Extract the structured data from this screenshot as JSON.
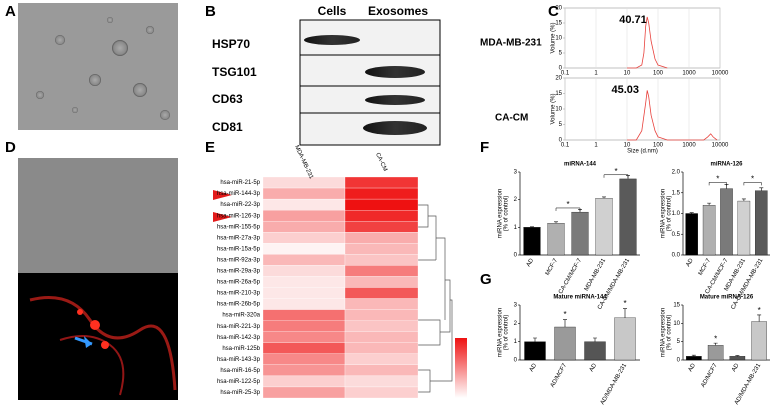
{
  "panels": [
    "A",
    "B",
    "C",
    "D",
    "E",
    "F",
    "G"
  ],
  "blot": {
    "columns": [
      "Cells",
      "Exosomes"
    ],
    "rows": [
      "HSP70",
      "TSG101",
      "CD63",
      "CD81"
    ]
  },
  "chart_data": [
    {
      "type": "line",
      "title": "MDA-MB-231",
      "annotation": "40.71",
      "color": "#e8413c",
      "log_x": true,
      "xlim": [
        0.1,
        10000
      ],
      "xticks": [
        0.1,
        1,
        10,
        100,
        1000,
        10000
      ],
      "ylim": [
        0,
        20
      ],
      "yticks": [
        0,
        5,
        10,
        15,
        20
      ],
      "ylabel": "Volume (%)",
      "x": [
        10,
        20,
        30,
        35,
        40,
        45,
        50,
        60,
        80,
        100,
        200
      ],
      "values": [
        0,
        0,
        1,
        5,
        14,
        17,
        15,
        9,
        3,
        1,
        0
      ]
    },
    {
      "type": "line",
      "title": "CA-CM",
      "annotation": "45.03",
      "xlabel": "Size (d.nm)",
      "color": "#e8413c",
      "log_x": true,
      "xlim": [
        0.1,
        10000
      ],
      "xticks": [
        0.1,
        1,
        10,
        100,
        1000,
        10000
      ],
      "ylim": [
        0,
        20
      ],
      "yticks": [
        0,
        5,
        10,
        15,
        20
      ],
      "ylabel": "Volume (%)",
      "x": [
        10,
        20,
        30,
        40,
        45,
        50,
        60,
        80,
        100,
        200,
        3000,
        4000,
        5000,
        6000,
        8000
      ],
      "values": [
        0,
        0,
        3,
        12,
        16,
        14,
        8,
        3,
        1,
        0,
        0,
        1,
        2,
        1,
        0
      ]
    },
    {
      "type": "bar",
      "title": "miRNA-144",
      "ylabel": [
        "miRNA expression",
        "(% of control)"
      ],
      "categories": [
        "AD",
        "MCF-7",
        "CA-CM/MCF-7",
        "MDA-MB-231",
        "CA-CM/MDA-MB-231"
      ],
      "values": [
        1.0,
        1.15,
        1.55,
        2.05,
        2.75
      ],
      "errors": [
        0.02,
        0.05,
        0.1,
        0.05,
        0.12
      ],
      "colors": [
        "#000000",
        "#b0b0b0",
        "#7a7a7a",
        "#d0d0d0",
        "#5a5a5a"
      ],
      "ylim": [
        0,
        3
      ],
      "yticks": [
        0,
        1,
        2,
        3
      ],
      "annotations": [
        "*",
        "*"
      ]
    },
    {
      "type": "bar",
      "title": "miRNA-126",
      "ylabel": [
        "miRNA expression",
        "(% of control)"
      ],
      "categories": [
        "AD",
        "MCF-7",
        "CA-CM/MCF-7",
        "MDA-MB-231",
        "CA-CM/MDA-MB-231"
      ],
      "values": [
        1.0,
        1.2,
        1.6,
        1.3,
        1.55
      ],
      "errors": [
        0.02,
        0.05,
        0.1,
        0.05,
        0.07
      ],
      "colors": [
        "#000000",
        "#b0b0b0",
        "#7a7a7a",
        "#d0d0d0",
        "#5a5a5a"
      ],
      "ylim": [
        0,
        2
      ],
      "yticks": [
        {
          "value": 0,
          "label": "0.0"
        },
        {
          "value": 0.5,
          "label": "0.5"
        },
        {
          "value": 1,
          "label": "1.0"
        },
        {
          "value": 1.5,
          "label": "1.5"
        },
        {
          "value": 2,
          "label": "2.0"
        }
      ],
      "annotations": [
        "*",
        "*"
      ]
    },
    {
      "type": "bar",
      "title": "Mature miRNA-144",
      "ylabel": [
        "miRNA expression",
        "(% of control)"
      ],
      "categories": [
        "AD",
        "AD/MCF7",
        "AD",
        "AD/MDA-MB-231"
      ],
      "values": [
        1.0,
        1.8,
        1.0,
        2.3
      ],
      "errors": [
        0.2,
        0.4,
        0.2,
        0.5
      ],
      "colors": [
        "#000000",
        "#9a9a9a",
        "#555555",
        "#c8c8c8"
      ],
      "ylim": [
        0,
        3
      ],
      "yticks": [
        0,
        1,
        2,
        3
      ],
      "annotations": [
        "*",
        "*"
      ]
    },
    {
      "type": "bar",
      "title": "Mature miRNA-126",
      "ylabel": [
        "miRNA expression",
        "(% of control)"
      ],
      "categories": [
        "AD",
        "AD/MCF7",
        "AD",
        "AD/MDA-MB-231"
      ],
      "values": [
        1.0,
        4.0,
        1.0,
        10.5
      ],
      "errors": [
        0.3,
        0.6,
        0.2,
        1.8
      ],
      "colors": [
        "#000000",
        "#9a9a9a",
        "#555555",
        "#c8c8c8"
      ],
      "ylim": [
        0,
        15
      ],
      "yticks": [
        0,
        5,
        10,
        15
      ],
      "annotations": [
        "*",
        "*"
      ]
    },
    {
      "type": "heatmap",
      "columns": [
        "MDA-MB-231",
        "CA-CM"
      ],
      "color": "#ee1111",
      "clim": [
        0,
        1
      ],
      "rows": [
        "hsa-miR-21-5p",
        "hsa-miR-144-3p",
        "hsa-miR-22-3p",
        "hsa-miR-126-3p",
        "hsa-miR-155-5p",
        "hsa-miR-27a-3p",
        "hsa-miR-15a-5p",
        "hsa-miR-92a-3p",
        "hsa-miR-29a-3p",
        "hsa-miR-26a-5p",
        "hsa-miR-210-3p",
        "hsa-miR-26b-5p",
        "hsa-miR-320a",
        "hsa-miR-221-3p",
        "hsa-miR-142-3p",
        "hsa-miR-125b",
        "hsa-miR-143-3p",
        "hsa-miR-16-5p",
        "hsa-miR-122-5p",
        "hsa-miR-25-3p"
      ],
      "values": [
        [
          0.15,
          0.85
        ],
        [
          0.35,
          0.95
        ],
        [
          0.1,
          1.0
        ],
        [
          0.4,
          0.9
        ],
        [
          0.35,
          0.8
        ],
        [
          0.2,
          0.35
        ],
        [
          0.05,
          0.3
        ],
        [
          0.3,
          0.25
        ],
        [
          0.15,
          0.55
        ],
        [
          0.1,
          0.3
        ],
        [
          0.1,
          0.7
        ],
        [
          0.1,
          0.3
        ],
        [
          0.6,
          0.3
        ],
        [
          0.55,
          0.25
        ],
        [
          0.5,
          0.3
        ],
        [
          0.7,
          0.3
        ],
        [
          0.5,
          0.2
        ],
        [
          0.45,
          0.3
        ],
        [
          0.2,
          0.15
        ],
        [
          0.4,
          0.2
        ]
      ]
    }
  ]
}
